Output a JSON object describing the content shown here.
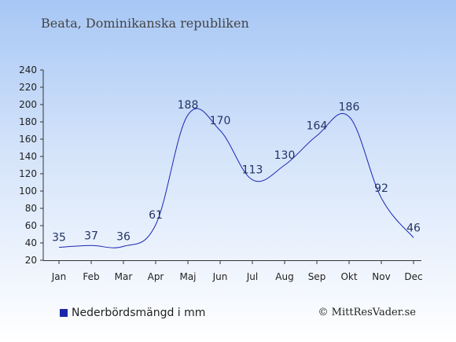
{
  "title": "Beata, Dominikanska republiken",
  "legend_label": "Nederbördsmängd i mm",
  "credit": "© MittResVader.se",
  "colors": {
    "line": "#1a27b5",
    "swatch": "#1a27a8",
    "axis": "#333333"
  },
  "chart_data": {
    "type": "line",
    "categories": [
      "Jan",
      "Feb",
      "Mar",
      "Apr",
      "Maj",
      "Jun",
      "Jul",
      "Aug",
      "Sep",
      "Okt",
      "Nov",
      "Dec"
    ],
    "series": [
      {
        "name": "Nederbördsmängd i mm",
        "values": [
          35,
          37,
          36,
          61,
          188,
          170,
          113,
          130,
          164,
          186,
          92,
          46
        ]
      }
    ],
    "ylim": [
      20,
      240
    ],
    "yticks": [
      20,
      40,
      60,
      80,
      100,
      120,
      140,
      160,
      180,
      200,
      220,
      240
    ],
    "grid": false,
    "data_labels": true,
    "legend_position": "bottom-left"
  }
}
